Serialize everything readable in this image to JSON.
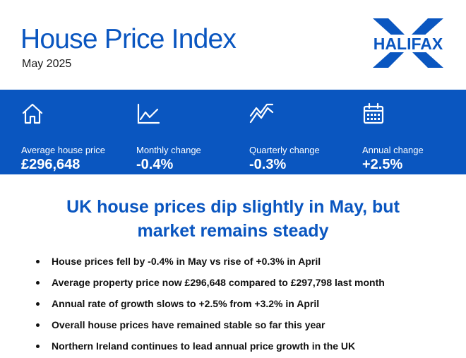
{
  "header": {
    "title": "House Price Index",
    "subtitle": "May 2025",
    "logo_text": "HALIFAX"
  },
  "colors": {
    "brand_blue": "#0a56c0",
    "text_dark": "#111111",
    "white": "#ffffff"
  },
  "stats": [
    {
      "icon": "house-icon",
      "label": "Average house price",
      "value": "£296,648"
    },
    {
      "icon": "line-chart-icon",
      "label": "Monthly change",
      "value": "-0.4%"
    },
    {
      "icon": "zigzag-chart-icon",
      "label": "Quarterly change",
      "value": "-0.3%"
    },
    {
      "icon": "calendar-icon",
      "label": "Annual change",
      "value": "+2.5%"
    }
  ],
  "headline": {
    "line1": "UK house prices dip slightly in May, but",
    "line2": "market remains steady"
  },
  "bullets": [
    "House prices fell by -0.4% in May vs rise of +0.3% in April",
    "Average property price now £296,648 compared to £297,798 last month",
    "Annual rate of growth slows to +2.5% from +3.2% in April",
    "Overall house prices have remained stable so far this year",
    "Northern Ireland continues to lead annual price growth in the UK"
  ]
}
